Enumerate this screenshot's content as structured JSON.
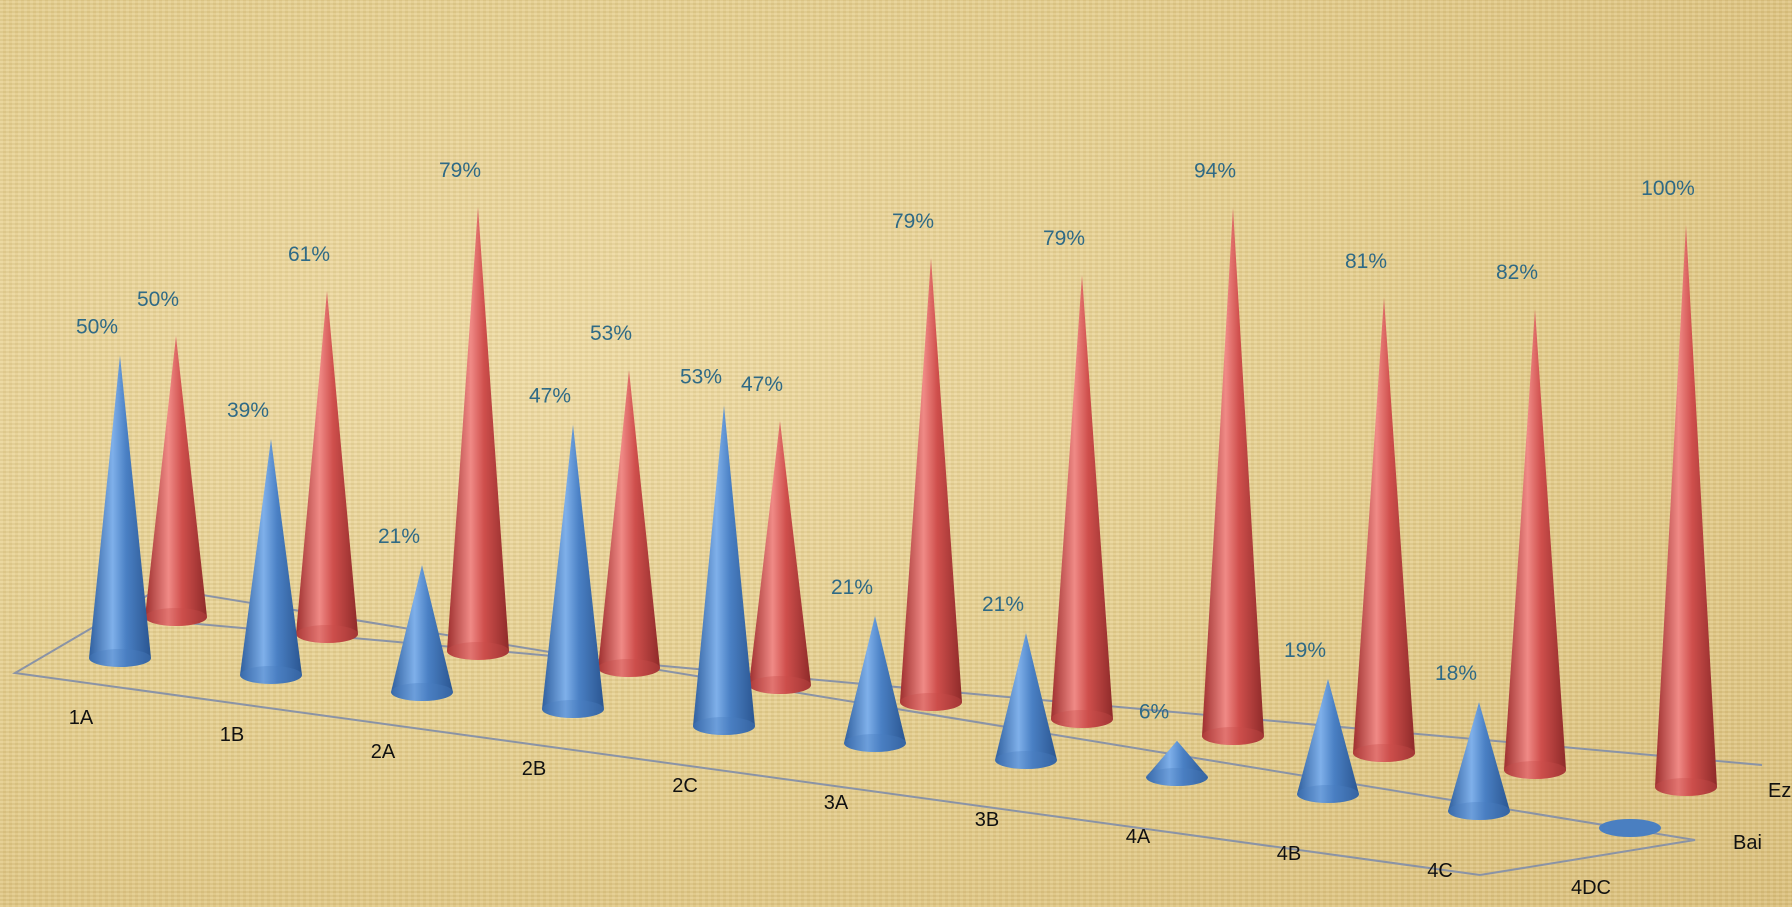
{
  "chart_data": {
    "type": "bar",
    "style": "3d-cone",
    "categories": [
      "1A",
      "1B",
      "2A",
      "2B",
      "2C",
      "3A",
      "3B",
      "4A",
      "4B",
      "4C",
      "4DC"
    ],
    "series": [
      {
        "name": "Bai",
        "color": "#4a7fc1",
        "values": [
          50,
          39,
          21,
          47,
          53,
          21,
          21,
          6,
          19,
          18,
          0
        ]
      },
      {
        "name": "Ez",
        "color": "#c94c4a",
        "values": [
          50,
          61,
          79,
          53,
          47,
          79,
          79,
          94,
          81,
          82,
          100
        ]
      }
    ],
    "value_labels": {
      "Bai": [
        "50%",
        "39%",
        "21%",
        "47%",
        "53%",
        "21%",
        "21%",
        "6%",
        "19%",
        "18%",
        ""
      ],
      "Ez": [
        "50%",
        "61%",
        "79%",
        "53%",
        "47%",
        "79%",
        "79%",
        "94%",
        "81%",
        "82%",
        "100%"
      ]
    },
    "ylim": [
      0,
      100
    ],
    "grid": false,
    "legend": "none"
  }
}
